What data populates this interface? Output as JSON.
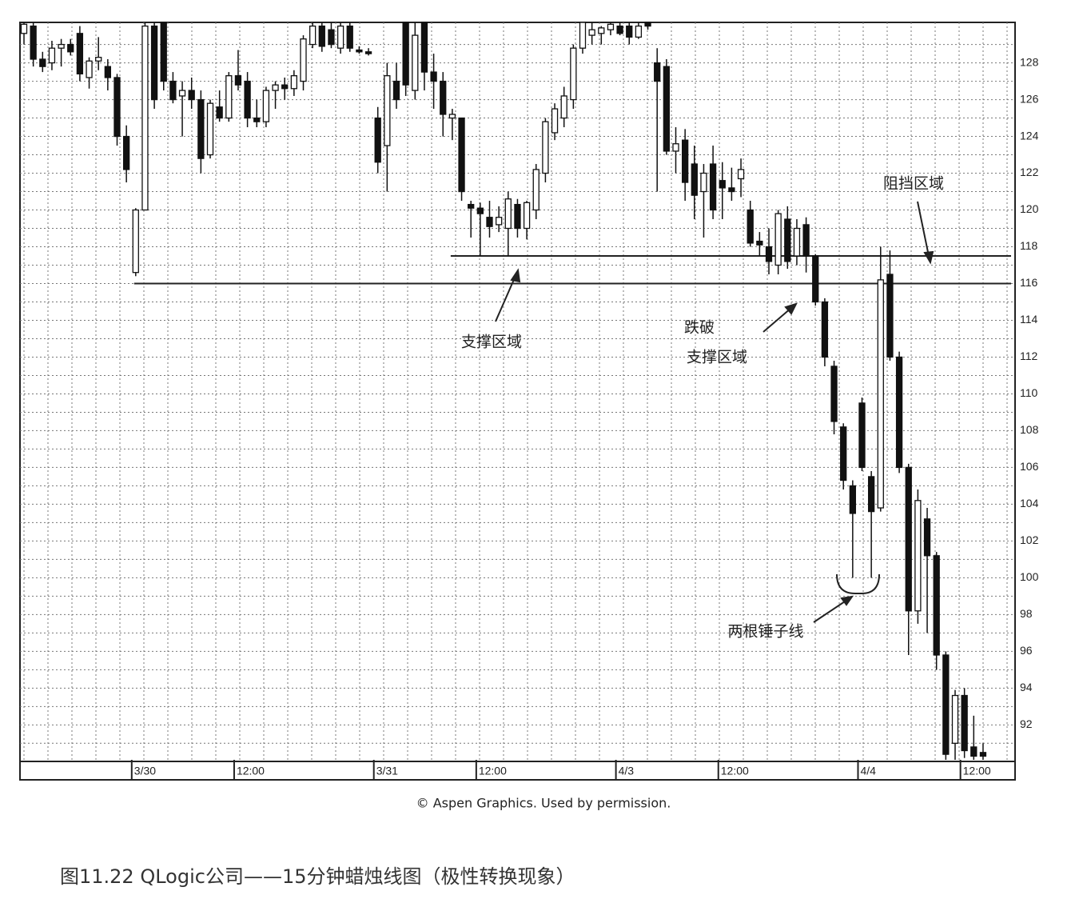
{
  "chart_data": {
    "type": "candlestick",
    "categories": [
      null,
      null,
      null,
      null,
      null,
      null,
      null,
      null,
      null,
      null,
      null,
      null,
      "3/30",
      null,
      null,
      null,
      null,
      null,
      null,
      null,
      null,
      null,
      null,
      "12:00",
      null,
      null,
      null,
      null,
      null,
      null,
      null,
      null,
      null,
      null,
      null,
      null,
      null,
      null,
      "3/31",
      null,
      null,
      null,
      null,
      null,
      null,
      null,
      null,
      null,
      null,
      "12:00",
      null,
      null,
      null,
      null,
      null,
      null,
      null,
      null,
      null,
      null,
      null,
      null,
      null,
      null,
      "4/3",
      null,
      null,
      null,
      null,
      null,
      null,
      null,
      null,
      null,
      null,
      "12:00",
      null,
      null,
      null,
      null,
      null,
      null,
      null,
      null,
      null,
      null,
      null,
      null,
      null,
      null,
      "4/4",
      null,
      null,
      null,
      null,
      null,
      null,
      null,
      null,
      null,
      null,
      "12:00",
      null,
      null
    ],
    "ohlc": [
      [
        129.6,
        130.2,
        129,
        130.1
      ],
      [
        130,
        130.2,
        127.8,
        128.2
      ],
      [
        128.2,
        128.6,
        127.5,
        127.8
      ],
      [
        128,
        129.2,
        127.6,
        128.8
      ],
      [
        128.8,
        129.3,
        127.8,
        129
      ],
      [
        129,
        129.3,
        128.4,
        128.6
      ],
      [
        129.6,
        130,
        127,
        127.4
      ],
      [
        127.2,
        128.3,
        126.6,
        128.1
      ],
      [
        128.1,
        129.4,
        127.6,
        128.3
      ],
      [
        127.8,
        128.2,
        126.5,
        127.2
      ],
      [
        127.2,
        127.4,
        123.5,
        124
      ],
      [
        124,
        124.6,
        121.5,
        122.2
      ],
      [
        116.6,
        120.1,
        116.4,
        120
      ],
      [
        120,
        130.2,
        120,
        130
      ],
      [
        130,
        130.2,
        125.5,
        126
      ],
      [
        130.2,
        130.2,
        126.5,
        127
      ],
      [
        127,
        127.5,
        125.8,
        126
      ],
      [
        126.2,
        127,
        124,
        126.5
      ],
      [
        126.5,
        127.2,
        125.5,
        126
      ],
      [
        126,
        126.5,
        122,
        122.8
      ],
      [
        123,
        126,
        122.8,
        125.8
      ],
      [
        125.6,
        126.5,
        124.8,
        125
      ],
      [
        125,
        127.5,
        124.8,
        127.3
      ],
      [
        127.3,
        128.7,
        126.5,
        126.8
      ],
      [
        127,
        127.5,
        124.5,
        125
      ],
      [
        125,
        126,
        124.5,
        124.8
      ],
      [
        124.8,
        126.7,
        124.5,
        126.5
      ],
      [
        126.5,
        127,
        125.5,
        126.8
      ],
      [
        126.8,
        127.2,
        126,
        126.6
      ],
      [
        126.6,
        127.6,
        126.2,
        127.3
      ],
      [
        127,
        129.5,
        126.5,
        129.3
      ],
      [
        129,
        130.2,
        128.8,
        130
      ],
      [
        130,
        130.2,
        128.6,
        128.9
      ],
      [
        129.8,
        130.2,
        128.8,
        129
      ],
      [
        128.8,
        130.2,
        128.5,
        130
      ],
      [
        130,
        130.2,
        128.6,
        128.8
      ],
      [
        128.7,
        128.9,
        128.5,
        128.6
      ],
      [
        128.6,
        128.8,
        128.4,
        128.5
      ],
      [
        125,
        125.6,
        122,
        122.6
      ],
      [
        123.5,
        128,
        121,
        127.3
      ],
      [
        127,
        128,
        125.5,
        126
      ],
      [
        130.2,
        130.2,
        126.2,
        126.8
      ],
      [
        126.5,
        130.2,
        126,
        129.5
      ],
      [
        130.2,
        130.2,
        126.5,
        127.5
      ],
      [
        127.5,
        128.5,
        125.5,
        127
      ],
      [
        127,
        127.5,
        124,
        125.2
      ],
      [
        125,
        125.5,
        123.8,
        125.2
      ],
      [
        125,
        125,
        120.5,
        121
      ],
      [
        120.3,
        120.5,
        118.5,
        120.1
      ],
      [
        120.1,
        120.4,
        117.5,
        119.8
      ],
      [
        119.6,
        120.5,
        118.5,
        119.1
      ],
      [
        119.2,
        120.2,
        118.8,
        119.6
      ],
      [
        119,
        121,
        117.5,
        120.6
      ],
      [
        120.3,
        120.6,
        118.5,
        119
      ],
      [
        119,
        120.5,
        118.4,
        120.4
      ],
      [
        120,
        122.5,
        119.5,
        122.2
      ],
      [
        122,
        125,
        121.5,
        124.8
      ],
      [
        124.2,
        125.8,
        123.8,
        125.5
      ],
      [
        125,
        126.7,
        124.5,
        126.2
      ],
      [
        126,
        129,
        125.5,
        128.8
      ],
      [
        128.8,
        130.2,
        128.5,
        130.2
      ],
      [
        129.5,
        130.2,
        129,
        129.8
      ],
      [
        129.6,
        130,
        129,
        129.9
      ],
      [
        129.8,
        130.2,
        129.5,
        130.1
      ],
      [
        130,
        130.2,
        129.5,
        129.6
      ],
      [
        130,
        130.2,
        129,
        129.4
      ],
      [
        129.4,
        130.2,
        129.3,
        130
      ],
      [
        130.2,
        130.2,
        129.8,
        130
      ],
      [
        128,
        128.8,
        121,
        127
      ],
      [
        127.8,
        128.2,
        123,
        123.2
      ],
      [
        123.2,
        124.5,
        122,
        123.6
      ],
      [
        123.8,
        124.4,
        120.5,
        121.5
      ],
      [
        122.5,
        123.5,
        119.5,
        120.8
      ],
      [
        121,
        122.5,
        118.5,
        122
      ],
      [
        122.5,
        123.5,
        119.5,
        120
      ],
      [
        121.6,
        122.6,
        119.5,
        121.2
      ],
      [
        121.2,
        122.3,
        120.5,
        121
      ],
      [
        121.7,
        122.8,
        120.7,
        122.2
      ],
      [
        120,
        120.5,
        118,
        118.2
      ],
      [
        118.3,
        118.8,
        117.5,
        118.1
      ],
      [
        118,
        119,
        116.5,
        117.2
      ],
      [
        117,
        120,
        116.5,
        119.8
      ],
      [
        119.5,
        120.2,
        116.8,
        117.2
      ],
      [
        117.5,
        119.5,
        117,
        119
      ],
      [
        119.2,
        119.6,
        116.6,
        117.5
      ],
      [
        117.5,
        117.6,
        114.8,
        115
      ],
      [
        115,
        115.2,
        111.5,
        112
      ],
      [
        111.5,
        111.8,
        107.8,
        108.5
      ],
      [
        108.2,
        108.4,
        104.8,
        105.3
      ],
      [
        105,
        105.3,
        100,
        103.5
      ],
      [
        109.5,
        109.8,
        105.8,
        106
      ],
      [
        105.5,
        105.8,
        100,
        103.6
      ],
      [
        103.8,
        118,
        103.6,
        116.2
      ],
      [
        116.5,
        117.8,
        111.8,
        112
      ],
      [
        112,
        112.3,
        105.7,
        106
      ],
      [
        106,
        106.2,
        95.8,
        98.2
      ],
      [
        98.2,
        104.8,
        97.5,
        104.2
      ],
      [
        103.2,
        103.8,
        97,
        101.2
      ],
      [
        101.2,
        101.4,
        95,
        95.8
      ],
      [
        95.8,
        96,
        90.1,
        90.4
      ],
      [
        91,
        93.9,
        90.1,
        93.6
      ],
      [
        93.6,
        94,
        90.2,
        90.6
      ],
      [
        90.8,
        92.5,
        90.1,
        90.3
      ],
      [
        90.5,
        91,
        90.1,
        90.3
      ]
    ],
    "up_color": "#ffffff",
    "down_color": "#111111",
    "ylim": [
      90.1,
      130.2
    ],
    "yticks": [
      92,
      94,
      96,
      98,
      100,
      102,
      104,
      106,
      108,
      110,
      112,
      114,
      116,
      118,
      120,
      122,
      124,
      126,
      128
    ],
    "grid": true,
    "levels": [
      116,
      117.5
    ],
    "annotations": [
      "支撑区域",
      "跌破",
      "支撑区域",
      "阻挡区域",
      "两根锤子线"
    ],
    "credit": "© Aspen Graphics. Used by permission."
  },
  "caption": "图11.22 QLogic公司——15分钟蜡烛线图（极性转换现象）"
}
